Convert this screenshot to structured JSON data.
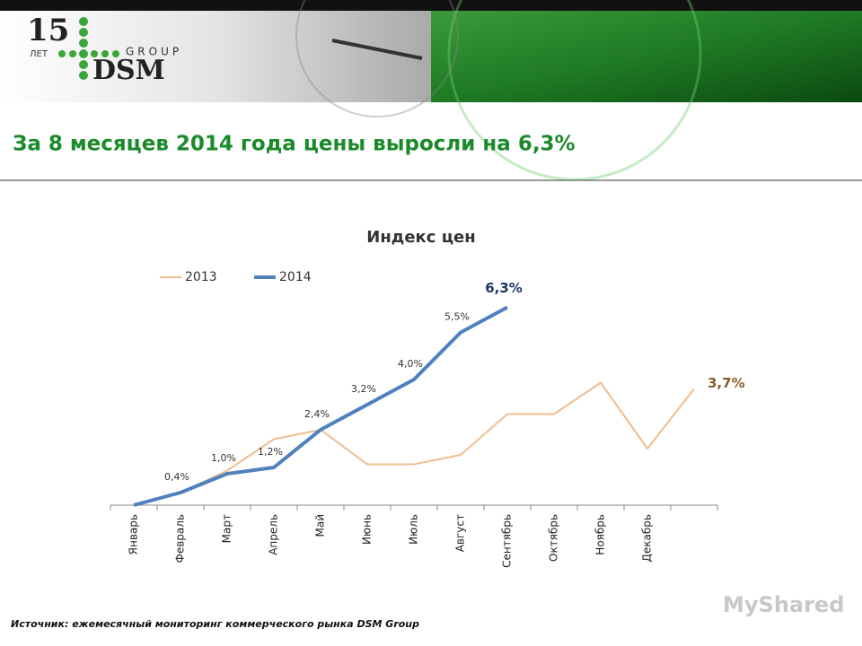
{
  "header": {
    "logo_number": "15",
    "logo_years": "ЛЕТ",
    "logo_group": "GROUP",
    "logo_brand": "DSM"
  },
  "slide_title": "За 8 месяцев 2014 года цены выросли на 6,3%",
  "chart_data": {
    "type": "line",
    "title": "Индекс цен",
    "categories": [
      "Январь",
      "Февраль",
      "Март",
      "Апрель",
      "Май",
      "Июнь",
      "Июль",
      "Август",
      "Сентябрь",
      "Октябрь",
      "Ноябрь",
      "Декабрь",
      null
    ],
    "series": [
      {
        "name": "2013",
        "color": "#f0bd8e",
        "values": [
          0,
          0.4,
          1.1,
          2.1,
          2.4,
          1.3,
          1.3,
          1.6,
          2.9,
          2.9,
          3.9,
          1.8,
          3.7
        ],
        "value_labels": [
          null,
          null,
          null,
          null,
          null,
          null,
          null,
          null,
          null,
          null,
          null,
          null,
          "3,7%"
        ]
      },
      {
        "name": "2014",
        "color": "#4f81bd",
        "values": [
          0,
          0.4,
          1.0,
          1.2,
          2.4,
          3.2,
          4.0,
          5.5,
          6.3,
          null,
          null,
          null,
          null
        ],
        "value_labels": [
          null,
          "0,4%",
          "1,0%",
          "1,2%",
          "2,4%",
          "3,2%",
          "4,0%",
          "5,5%",
          "6,3%",
          null,
          null,
          null,
          null
        ]
      }
    ],
    "legend": "top-left"
  },
  "source": "Источник: ежемесячный мониторинг коммерческого рынка DSM Group",
  "watermark": "MyShared"
}
